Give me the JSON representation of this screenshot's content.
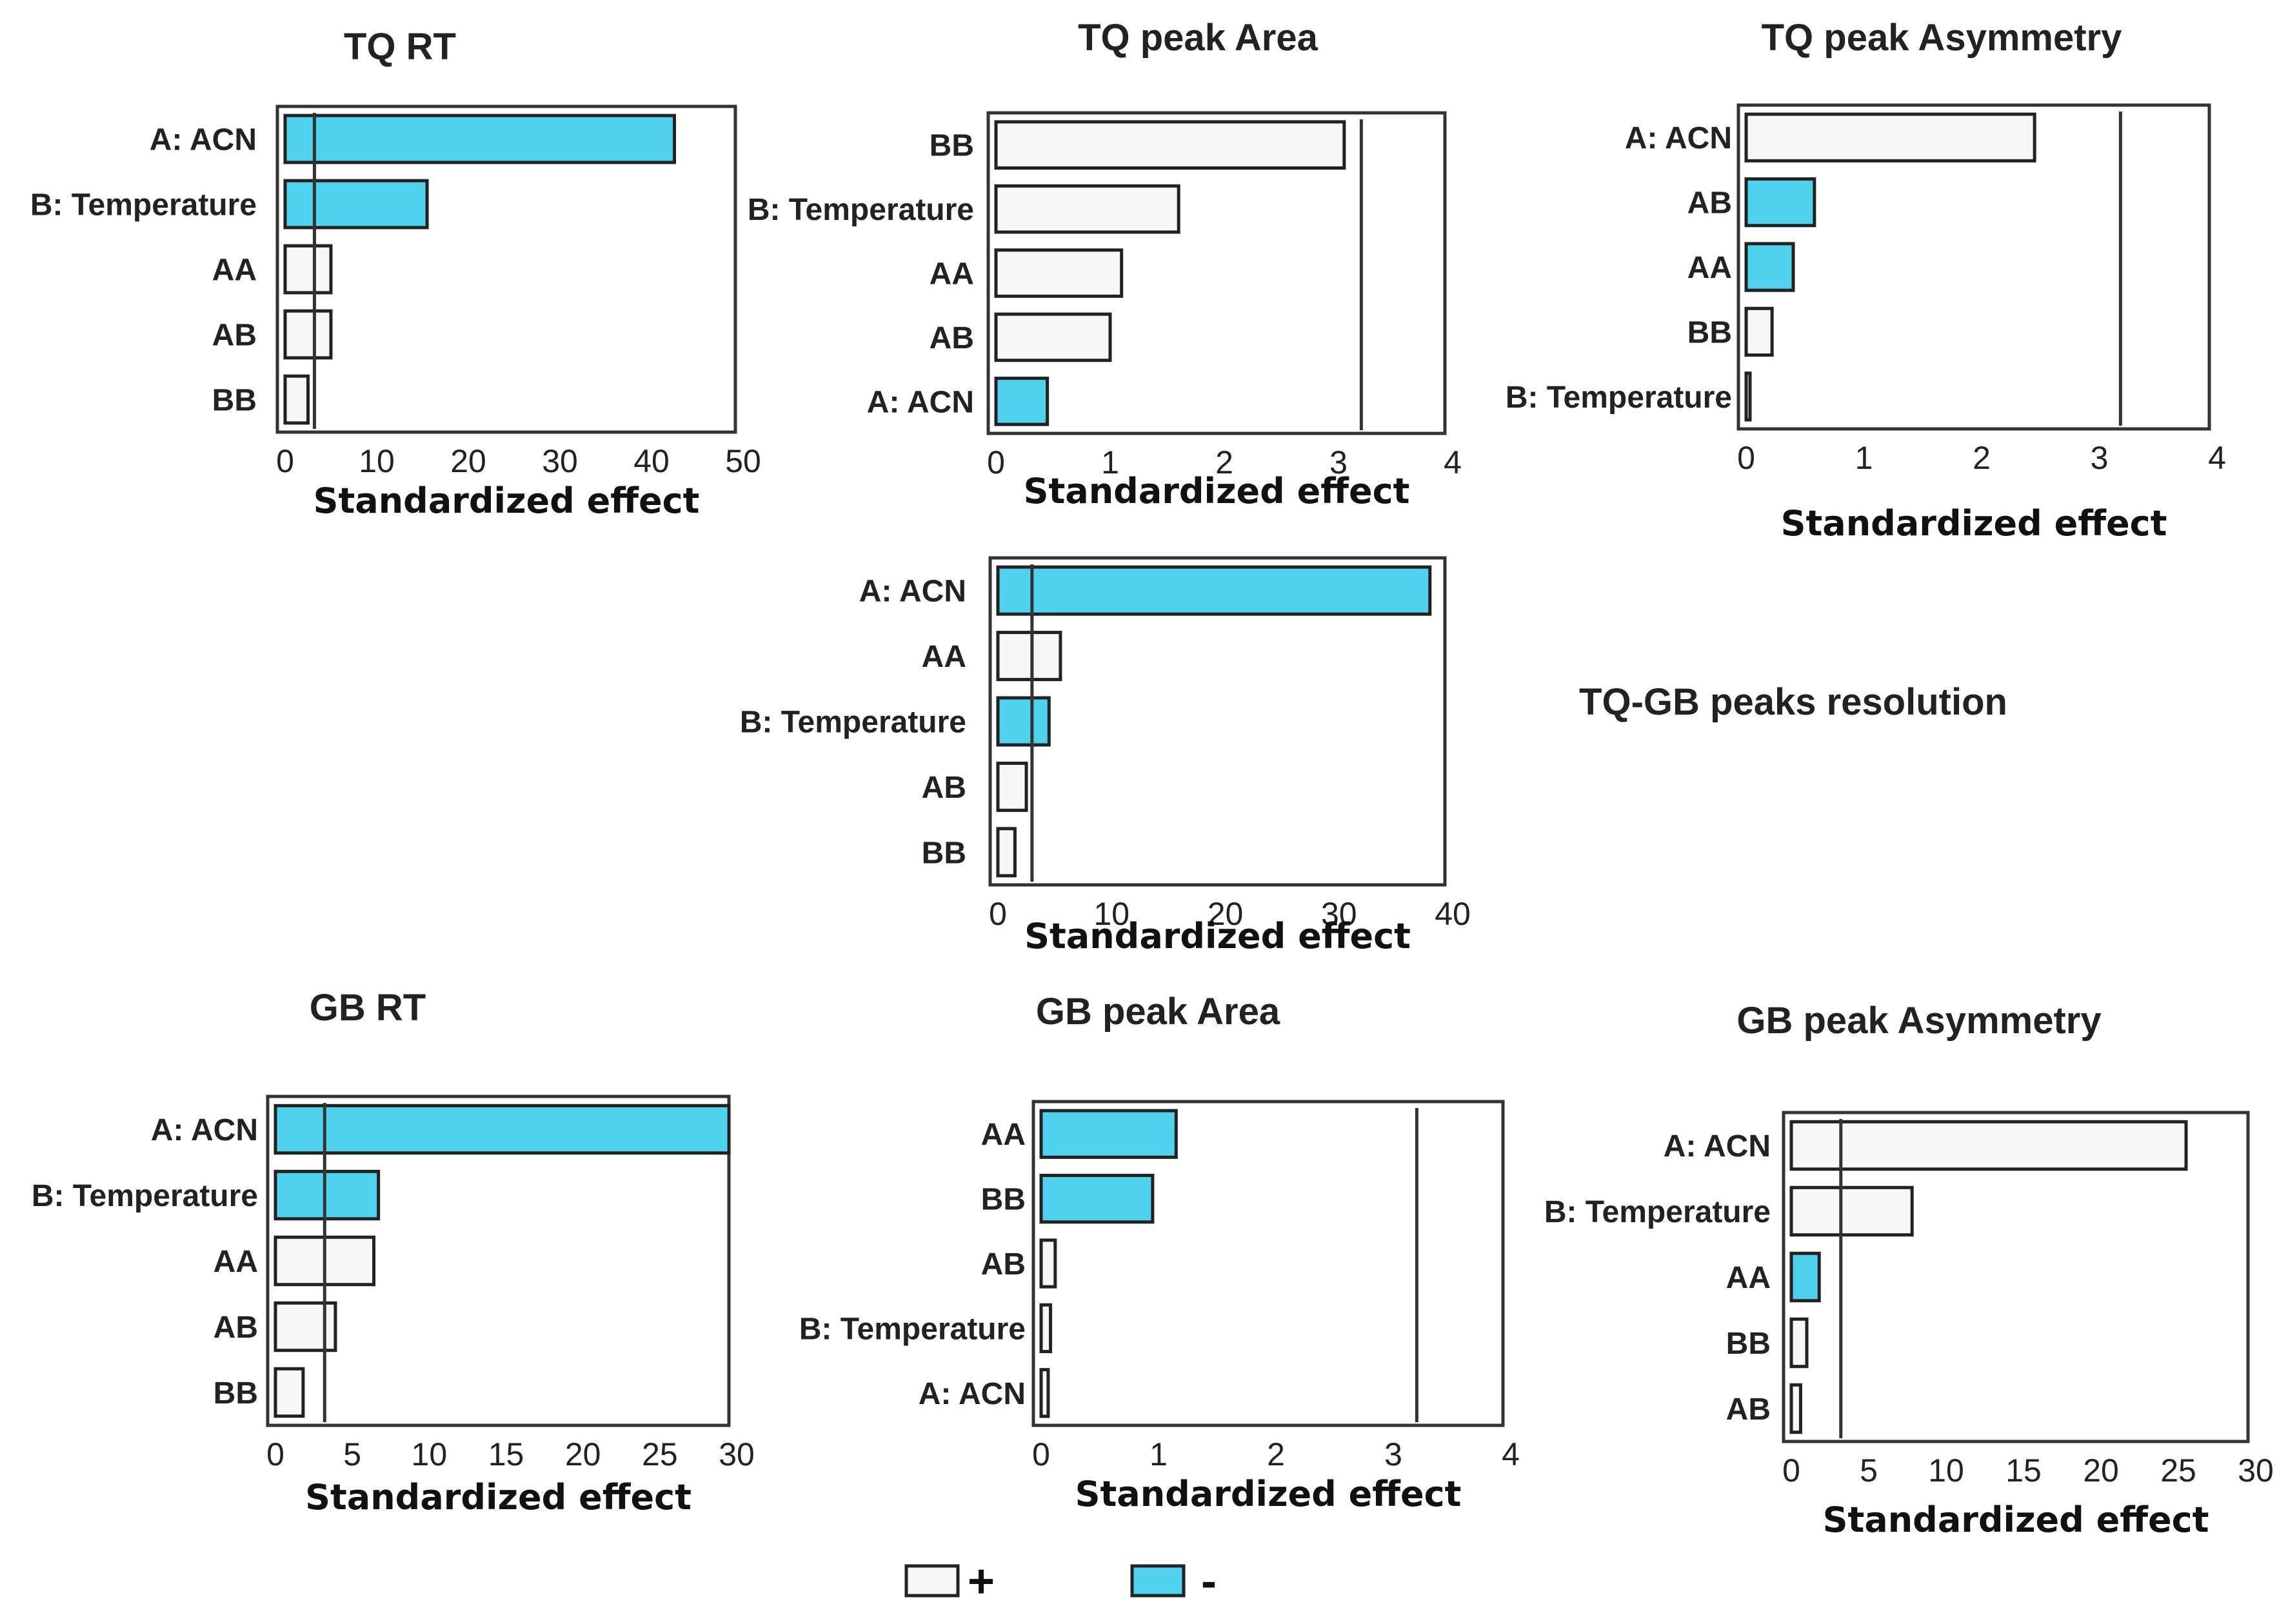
{
  "chart_data": [
    {
      "type": "bar",
      "orientation": "horizontal",
      "title": "TQ RT",
      "categories": [
        "A: ACN",
        "B: Temperature",
        "AA",
        "AB",
        "BB"
      ],
      "values": [
        42.5,
        15.5,
        5.0,
        5.0,
        2.5
      ],
      "signs": [
        "-",
        "-",
        "+",
        "+",
        "+"
      ],
      "xlim": [
        0,
        50
      ],
      "ticks": [
        0,
        10,
        20,
        30,
        40,
        50
      ],
      "reference_line": 3.2,
      "xlabel": "Standardized effect"
    },
    {
      "type": "bar",
      "orientation": "horizontal",
      "title": "TQ peak Area",
      "categories": [
        "BB",
        "B: Temperature",
        "AA",
        "AB",
        "A: ACN"
      ],
      "values": [
        3.05,
        1.6,
        1.1,
        1.0,
        0.45
      ],
      "signs": [
        "+",
        "+",
        "+",
        "+",
        "-"
      ],
      "xlim": [
        0,
        4
      ],
      "ticks": [
        0,
        1,
        2,
        3,
        4
      ],
      "reference_line": 3.2,
      "xlabel": "Standardized effect"
    },
    {
      "type": "bar",
      "orientation": "horizontal",
      "title": "TQ peak Asymmetry",
      "categories": [
        "A: ACN",
        "AB",
        "AA",
        "BB",
        "B: Temperature"
      ],
      "values": [
        2.45,
        0.58,
        0.4,
        0.22,
        0.02
      ],
      "signs": [
        "+",
        "-",
        "-",
        "+",
        "+"
      ],
      "xlim": [
        0,
        4
      ],
      "ticks": [
        0,
        1,
        2,
        3,
        4
      ],
      "reference_line": 3.18,
      "xlabel": "Standardized effect"
    },
    {
      "type": "bar",
      "orientation": "horizontal",
      "title": "TQ-GB peaks resolution",
      "categories": [
        "A: ACN",
        "AA",
        "B: Temperature",
        "AB",
        "BB"
      ],
      "values": [
        38.0,
        5.5,
        4.5,
        2.5,
        1.5
      ],
      "signs": [
        "-",
        "+",
        "-",
        "+",
        "+"
      ],
      "xlim": [
        0,
        40
      ],
      "ticks": [
        0,
        10,
        20,
        30,
        40
      ],
      "reference_line": 3.0,
      "xlabel": "Standardized effect"
    },
    {
      "type": "bar",
      "orientation": "horizontal",
      "title": "GB RT",
      "categories": [
        "A: ACN",
        "B: Temperature",
        "AA",
        "AB",
        "BB"
      ],
      "values": [
        29.5,
        6.7,
        6.4,
        3.9,
        1.8
      ],
      "signs": [
        "-",
        "-",
        "+",
        "+",
        "+"
      ],
      "xlim": [
        0,
        30
      ],
      "ticks": [
        0,
        5,
        10,
        15,
        20,
        25,
        30
      ],
      "reference_line": 3.2,
      "xlabel": "Standardized effect"
    },
    {
      "type": "bar",
      "orientation": "horizontal",
      "title": "GB peak Area",
      "categories": [
        "AA",
        "BB",
        "AB",
        "B: Temperature",
        "A: ACN"
      ],
      "values": [
        1.15,
        0.95,
        0.12,
        0.08,
        0.06
      ],
      "signs": [
        "-",
        "-",
        "+",
        "+",
        "+"
      ],
      "xlim": [
        0,
        4
      ],
      "ticks": [
        0,
        1,
        2,
        3,
        4
      ],
      "reference_line": 3.2,
      "xlabel": "Standardized effect"
    },
    {
      "type": "bar",
      "orientation": "horizontal",
      "title": "GB peak Asymmetry",
      "categories": [
        "A: ACN",
        "B: Temperature",
        "AA",
        "BB",
        "AB"
      ],
      "values": [
        25.5,
        7.8,
        1.8,
        1.0,
        0.6
      ],
      "signs": [
        "+",
        "+",
        "-",
        "+",
        "+"
      ],
      "xlim": [
        0,
        30
      ],
      "ticks": [
        0,
        5,
        10,
        15,
        20,
        25,
        30
      ],
      "reference_line": 3.2,
      "xlabel": "Standardized effect"
    }
  ],
  "legend": {
    "positive_label": "+",
    "negative_label": "-",
    "positive_color": "#f7f7f7",
    "negative_color": "#4fd2ee"
  }
}
